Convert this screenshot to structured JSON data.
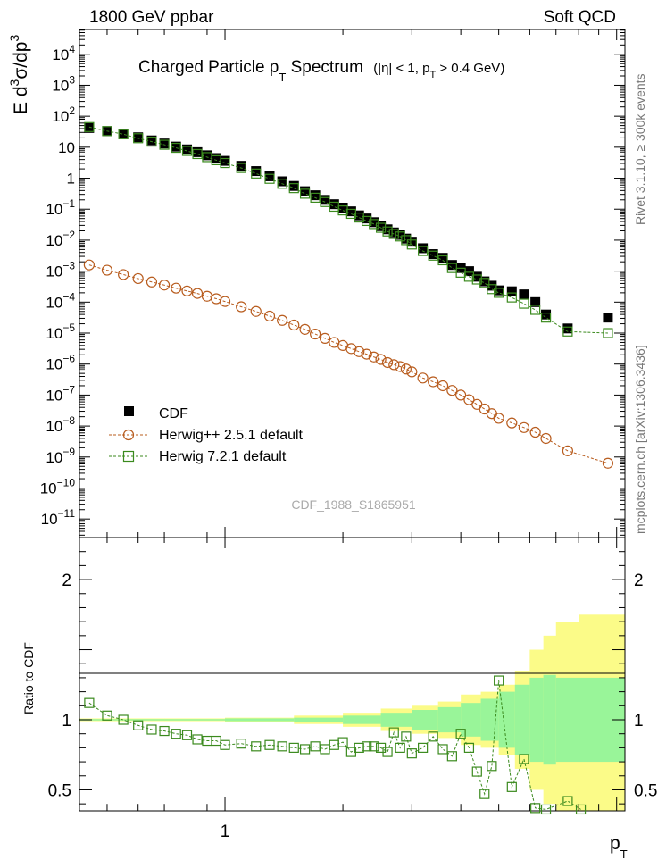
{
  "header": {
    "left": "1800 GeV ppbar",
    "right": "Soft QCD"
  },
  "side_labels": {
    "rivet": "Rivet 3.1.10, ≥ 300k events",
    "mcplots": "mcplots.cern.ch [arXiv:1306.3436]"
  },
  "watermark": "CDF_1988_S1865951",
  "colors": {
    "data": "#000000",
    "herwigpp": "#b85c1e",
    "herwig7": "#3b8a1e",
    "band_inner": "#99f599",
    "band_outer": "#fbfb88"
  },
  "chart_data": [
    {
      "type": "scatter",
      "log_y": true,
      "log_x": true,
      "title": {
        "main": "Charged Particle p",
        "sub1": "T",
        "main2": " Spectrum",
        "paren": "(|η| < 1, p",
        "sub2": "T",
        "paren2": " > 0.4 GeV)"
      },
      "ylabel": {
        "a": "E d",
        "b": "3",
        "c": "σ/dp",
        "d": "3"
      },
      "xlim": [
        0.425,
        10.5
      ],
      "ylim_log10": [
        -11.6,
        4.8
      ],
      "ytick_exponents": [
        -11,
        -10,
        -9,
        -8,
        -7,
        -6,
        -5,
        -4,
        -3,
        -2,
        -1,
        0,
        1,
        2,
        3,
        4
      ],
      "ytick_labels": [
        {
          "b": "10",
          "e": "−11"
        },
        {
          "b": "10",
          "e": "−10"
        },
        {
          "b": "10",
          "e": "−9"
        },
        {
          "b": "10",
          "e": "−8"
        },
        {
          "b": "10",
          "e": "−7"
        },
        {
          "b": "10",
          "e": "−6"
        },
        {
          "b": "10",
          "e": "−5"
        },
        {
          "b": "10",
          "e": "−4"
        },
        {
          "b": "10",
          "e": "−3"
        },
        {
          "b": "10",
          "e": "−2"
        },
        {
          "b": "10",
          "e": "−1"
        },
        {
          "b": "1",
          "e": ""
        },
        {
          "b": "10",
          "e": ""
        },
        {
          "b": "10",
          "e": "2"
        },
        {
          "b": "10",
          "e": "3"
        },
        {
          "b": "10",
          "e": "4"
        }
      ],
      "legend": {
        "position": "middle-left",
        "entries": [
          "CDF",
          "Herwig++ 2.5.1 default",
          "Herwig 7.2.1 default"
        ]
      },
      "series": [
        {
          "name": "CDF",
          "marker": "filled-square",
          "x": [
            0.45,
            0.5,
            0.55,
            0.6,
            0.65,
            0.7,
            0.75,
            0.8,
            0.85,
            0.9,
            0.95,
            1.0,
            1.1,
            1.2,
            1.3,
            1.4,
            1.5,
            1.6,
            1.7,
            1.8,
            1.9,
            2.0,
            2.1,
            2.2,
            2.3,
            2.4,
            2.5,
            2.6,
            2.7,
            2.8,
            2.9,
            3.0,
            3.2,
            3.4,
            3.6,
            3.8,
            4.0,
            4.2,
            4.4,
            4.6,
            4.8,
            5.0,
            5.4,
            5.8,
            6.2,
            6.6,
            7.5,
            9.5
          ],
          "log10_y": [
            1.62,
            1.52,
            1.42,
            1.32,
            1.22,
            1.12,
            1.02,
            0.93,
            0.84,
            0.74,
            0.65,
            0.56,
            0.4,
            0.23,
            0.06,
            -0.1,
            -0.25,
            -0.42,
            -0.55,
            -0.7,
            -0.84,
            -0.95,
            -1.07,
            -1.2,
            -1.3,
            -1.42,
            -1.55,
            -1.65,
            -1.75,
            -1.83,
            -1.95,
            -2.05,
            -2.26,
            -2.45,
            -2.57,
            -2.8,
            -2.9,
            -3.0,
            -3.18,
            -3.33,
            -3.47,
            -3.62,
            -3.65,
            -3.75,
            -4.0,
            -4.4,
            -4.85,
            -4.5
          ]
        },
        {
          "name": "Herwig++ 2.5.1 default",
          "marker": "open-circle",
          "x": [
            0.45,
            0.5,
            0.55,
            0.6,
            0.65,
            0.7,
            0.75,
            0.8,
            0.85,
            0.9,
            0.95,
            1.0,
            1.1,
            1.2,
            1.3,
            1.4,
            1.5,
            1.6,
            1.7,
            1.8,
            1.9,
            2.0,
            2.1,
            2.2,
            2.3,
            2.4,
            2.5,
            2.6,
            2.7,
            2.8,
            2.9,
            3.0,
            3.2,
            3.4,
            3.6,
            3.8,
            4.0,
            4.2,
            4.4,
            4.6,
            4.8,
            5.0,
            5.4,
            5.8,
            6.2,
            6.6,
            7.5,
            9.5
          ],
          "log10_y": [
            -2.8,
            -2.97,
            -3.11,
            -3.24,
            -3.35,
            -3.45,
            -3.55,
            -3.64,
            -3.72,
            -3.81,
            -3.89,
            -3.98,
            -4.15,
            -4.3,
            -4.45,
            -4.59,
            -4.74,
            -4.88,
            -5.03,
            -5.17,
            -5.3,
            -5.4,
            -5.5,
            -5.6,
            -5.68,
            -5.77,
            -5.85,
            -5.95,
            -6.02,
            -6.08,
            -6.16,
            -6.25,
            -6.45,
            -6.57,
            -6.7,
            -6.85,
            -7.0,
            -7.15,
            -7.3,
            -7.45,
            -7.6,
            -7.75,
            -7.9,
            -8.05,
            -8.2,
            -8.4,
            -8.8,
            -9.2
          ]
        },
        {
          "name": "Herwig 7.2.1 default",
          "marker": "open-square",
          "x": [
            0.45,
            0.5,
            0.55,
            0.6,
            0.65,
            0.7,
            0.75,
            0.8,
            0.85,
            0.9,
            0.95,
            1.0,
            1.1,
            1.2,
            1.3,
            1.4,
            1.5,
            1.6,
            1.7,
            1.8,
            1.9,
            2.0,
            2.1,
            2.2,
            2.3,
            2.4,
            2.5,
            2.6,
            2.7,
            2.8,
            2.9,
            3.0,
            3.2,
            3.4,
            3.6,
            3.8,
            4.0,
            4.2,
            4.4,
            4.6,
            4.8,
            5.0,
            5.4,
            5.8,
            6.2,
            6.6,
            7.5,
            9.5
          ],
          "log10_y": [
            1.65,
            1.52,
            1.42,
            1.29,
            1.18,
            1.08,
            0.98,
            0.88,
            0.78,
            0.68,
            0.58,
            0.49,
            0.33,
            0.15,
            -0.02,
            -0.18,
            -0.32,
            -0.5,
            -0.63,
            -0.77,
            -0.92,
            -1.04,
            -1.15,
            -1.27,
            -1.38,
            -1.48,
            -1.6,
            -1.72,
            -1.8,
            -1.88,
            -2.0,
            -2.14,
            -2.35,
            -2.5,
            -2.65,
            -2.9,
            -3.05,
            -3.18,
            -3.27,
            -3.38,
            -3.58,
            -3.7,
            -3.85,
            -4.05,
            -4.25,
            -4.5,
            -4.95,
            -5.0
          ]
        }
      ]
    },
    {
      "type": "scatter",
      "ylabel": "Ratio to CDF",
      "xlabel": "p",
      "xlabel_sub": "T",
      "xlim": [
        0.425,
        10.5
      ],
      "ylim": [
        0.35,
        2.3
      ],
      "yticks": [
        0.5,
        1,
        2
      ],
      "ytick_labels": [
        "0.5",
        "1",
        "2"
      ],
      "xtick_labels": [
        {
          "value": 1,
          "label": "1"
        }
      ],
      "uncertainty_bands": {
        "x_edges": [
          0.425,
          0.7,
          1.0,
          1.5,
          2.0,
          2.5,
          3.0,
          3.5,
          4.0,
          4.5,
          5.0,
          5.5,
          6.0,
          6.5,
          7.0,
          8.0,
          10.5
        ],
        "inner_half": [
          0.005,
          0.005,
          0.01,
          0.015,
          0.03,
          0.05,
          0.07,
          0.09,
          0.12,
          0.15,
          0.2,
          0.25,
          0.3,
          0.32,
          0.3,
          0.3,
          0.3
        ],
        "outer_half": [
          0.01,
          0.01,
          0.015,
          0.03,
          0.05,
          0.08,
          0.1,
          0.13,
          0.18,
          0.2,
          0.25,
          0.35,
          0.5,
          0.6,
          0.7,
          0.75,
          0.75
        ]
      },
      "series": [
        {
          "name": "Herwig 7.2.1 default",
          "marker": "open-square",
          "x": [
            0.45,
            0.5,
            0.55,
            0.6,
            0.65,
            0.7,
            0.75,
            0.8,
            0.85,
            0.9,
            0.95,
            1.0,
            1.1,
            1.2,
            1.3,
            1.4,
            1.5,
            1.6,
            1.7,
            1.8,
            1.9,
            2.0,
            2.1,
            2.2,
            2.3,
            2.4,
            2.5,
            2.6,
            2.7,
            2.8,
            2.9,
            3.0,
            3.2,
            3.4,
            3.6,
            3.8,
            4.0,
            4.2,
            4.4,
            4.6,
            4.8,
            5.0,
            5.4,
            5.8,
            6.2,
            6.6,
            7.5,
            8.1
          ],
          "y": [
            1.12,
            1.03,
            1.0,
            0.96,
            0.93,
            0.92,
            0.9,
            0.89,
            0.86,
            0.85,
            0.85,
            0.82,
            0.83,
            0.81,
            0.82,
            0.81,
            0.8,
            0.79,
            0.81,
            0.79,
            0.82,
            0.84,
            0.77,
            0.8,
            0.81,
            0.81,
            0.8,
            0.77,
            0.91,
            0.8,
            0.88,
            0.76,
            0.8,
            0.88,
            0.79,
            0.74,
            0.9,
            0.8,
            0.63,
            0.47,
            0.67,
            1.28,
            0.52,
            0.72,
            0.37,
            0.36,
            0.42,
            0.36
          ]
        }
      ]
    }
  ]
}
